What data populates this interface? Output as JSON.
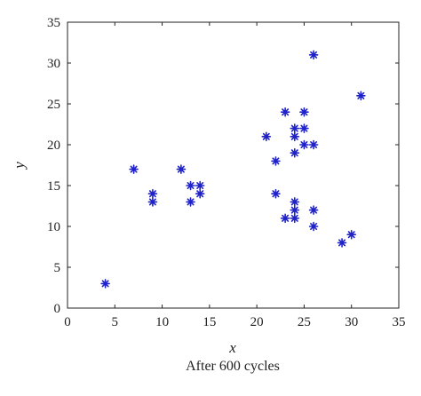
{
  "chart_data": {
    "type": "scatter",
    "title": "",
    "xlabel": "x",
    "ylabel": "y",
    "caption": "After 600 cycles",
    "xlim": [
      0,
      35
    ],
    "ylim": [
      0,
      35
    ],
    "xticks": [
      0,
      5,
      10,
      15,
      20,
      25,
      30,
      35
    ],
    "yticks": [
      0,
      5,
      10,
      15,
      20,
      25,
      30,
      35
    ],
    "grid": false,
    "legend": "none",
    "marker": "star",
    "marker_color": "#1f22c9",
    "series": [
      {
        "points": [
          [
            4,
            3
          ],
          [
            7,
            17
          ],
          [
            9,
            14
          ],
          [
            9,
            13
          ],
          [
            12,
            17
          ],
          [
            13,
            15
          ],
          [
            13,
            13
          ],
          [
            14,
            15
          ],
          [
            14,
            14
          ],
          [
            21,
            21
          ],
          [
            22,
            18
          ],
          [
            22,
            14
          ],
          [
            23,
            24
          ],
          [
            23,
            11
          ],
          [
            24,
            22
          ],
          [
            24,
            21
          ],
          [
            24,
            19
          ],
          [
            24,
            13
          ],
          [
            24,
            12
          ],
          [
            24,
            11
          ],
          [
            25,
            24
          ],
          [
            25,
            22
          ],
          [
            25,
            20
          ],
          [
            26,
            31
          ],
          [
            26,
            20
          ],
          [
            26,
            12
          ],
          [
            26,
            10
          ],
          [
            29,
            8
          ],
          [
            30,
            9
          ],
          [
            31,
            26
          ]
        ]
      }
    ]
  }
}
